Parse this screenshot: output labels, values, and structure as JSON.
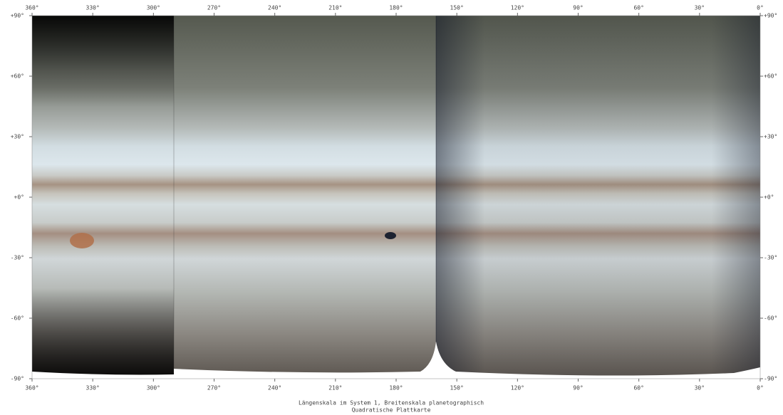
{
  "map": {
    "longitude_ticks": [
      {
        "value": 360,
        "label": "360°"
      },
      {
        "value": 330,
        "label": "330°"
      },
      {
        "value": 300,
        "label": "300°"
      },
      {
        "value": 270,
        "label": "270°"
      },
      {
        "value": 240,
        "label": "240°"
      },
      {
        "value": 210,
        "label": "210°"
      },
      {
        "value": 180,
        "label": "180°"
      },
      {
        "value": 150,
        "label": "150°"
      },
      {
        "value": 120,
        "label": "120°"
      },
      {
        "value": 90,
        "label": "90°"
      },
      {
        "value": 60,
        "label": "60°"
      },
      {
        "value": 30,
        "label": "30°"
      },
      {
        "value": 0,
        "label": "0°"
      }
    ],
    "latitude_ticks": [
      {
        "value": 90,
        "label": "+90°"
      },
      {
        "value": 60,
        "label": "+60°"
      },
      {
        "value": 30,
        "label": "+30°"
      },
      {
        "value": 0,
        "label": "+0°"
      },
      {
        "value": -30,
        "label": "-30°"
      },
      {
        "value": -60,
        "label": "-60°"
      },
      {
        "value": -90,
        "label": "-90°"
      }
    ],
    "caption": [
      "Längenskala im System 1, Breitenskala planetographisch",
      "Quadratische Plattkarte"
    ]
  }
}
